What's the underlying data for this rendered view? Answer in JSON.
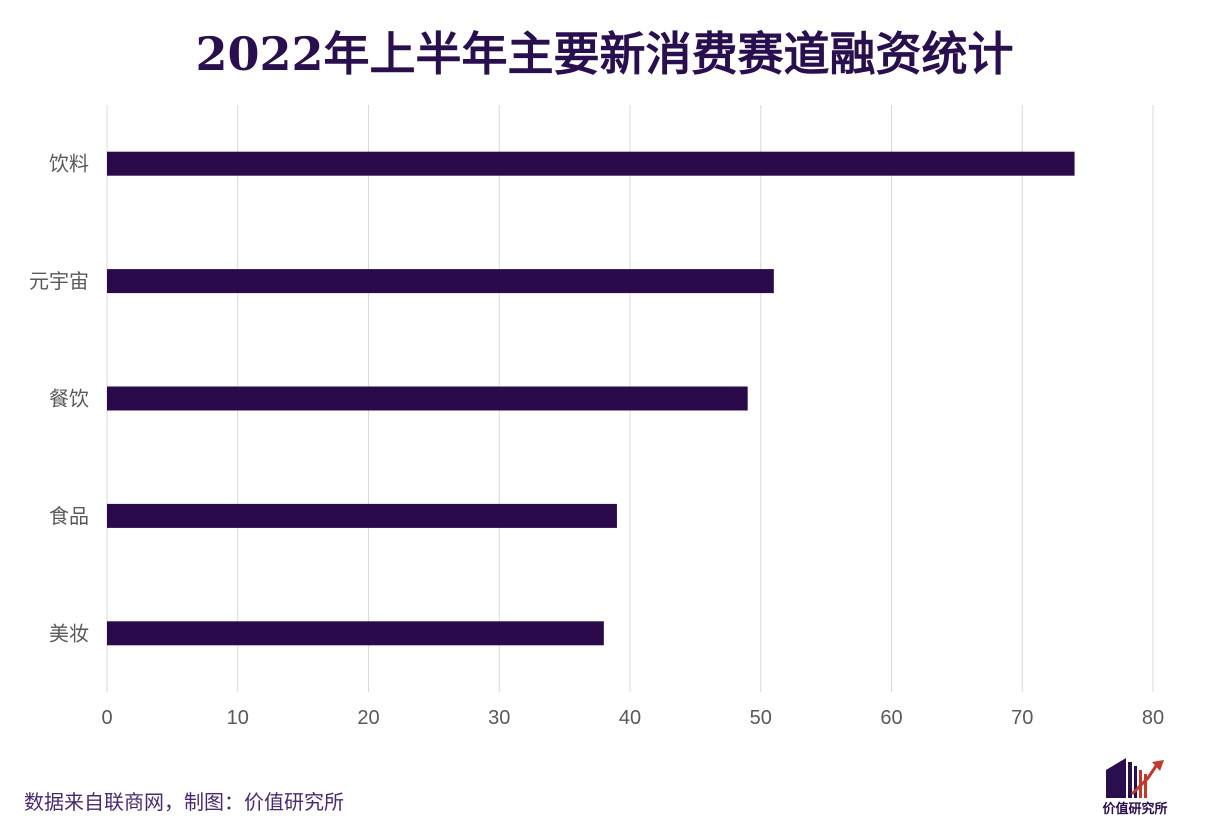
{
  "chart_data": {
    "type": "bar",
    "orientation": "horizontal",
    "title": "2022年上半年主要新消费赛道融资统计",
    "categories": [
      "饮料",
      "元宇宙",
      "餐饮",
      "食品",
      "美妆"
    ],
    "values": [
      74,
      51,
      49,
      39,
      38
    ],
    "xlim": [
      0,
      80
    ],
    "xticks": [
      "0",
      "10",
      "20",
      "30",
      "40",
      "50",
      "60",
      "70",
      "80"
    ],
    "xlabel": "",
    "ylabel": "",
    "grid": true,
    "legend": "none",
    "bar_color": "#2a0a4a",
    "grid_color": "#d9d9d9",
    "tick_label_color": "#595959"
  },
  "footer": {
    "source": "数据来自联商网，制图：价值研究所"
  },
  "logo": {
    "text": "价值研究所",
    "icon": "building-chart-logo-icon",
    "colors": {
      "primary": "#2a0f4f",
      "accent": "#c0392b"
    }
  }
}
